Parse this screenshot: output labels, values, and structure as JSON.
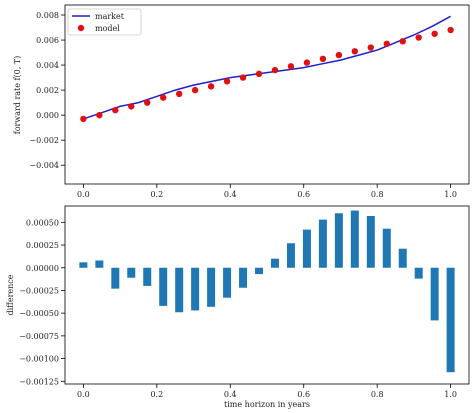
{
  "chart_data": [
    {
      "type": "line",
      "ylabel": "forward rate f(0, T)",
      "xlim": [
        -0.05,
        1.05
      ],
      "ylim": [
        -0.0055,
        0.0088
      ],
      "xticks": [
        "0.0",
        "0.2",
        "0.4",
        "0.6",
        "0.8",
        "1.0"
      ],
      "yticks": [
        "−0.004",
        "−0.002",
        "0.000",
        "0.002",
        "0.004",
        "0.006",
        "0.008"
      ],
      "legend": {
        "position": "top-left",
        "entries": [
          "market",
          "model"
        ]
      },
      "series": [
        {
          "name": "market",
          "style": "line",
          "color": "#1f1fcc",
          "x": [
            0.0,
            0.05,
            0.1,
            0.15,
            0.2,
            0.25,
            0.3,
            0.35,
            0.4,
            0.45,
            0.5,
            0.55,
            0.6,
            0.65,
            0.7,
            0.75,
            0.8,
            0.85,
            0.9,
            0.95,
            1.0
          ],
          "y": [
            -0.0003,
            0.0002,
            0.0007,
            0.001,
            0.0015,
            0.002,
            0.0024,
            0.0027,
            0.003,
            0.0032,
            0.0034,
            0.0036,
            0.0038,
            0.0041,
            0.0044,
            0.0048,
            0.0052,
            0.0058,
            0.0064,
            0.0071,
            0.0079
          ]
        },
        {
          "name": "model",
          "style": "scatter",
          "color": "#e01010",
          "x": [
            0.0,
            0.0435,
            0.087,
            0.1304,
            0.1739,
            0.2174,
            0.2609,
            0.3043,
            0.3478,
            0.3913,
            0.4348,
            0.4783,
            0.5217,
            0.5652,
            0.6087,
            0.6522,
            0.6957,
            0.7391,
            0.7826,
            0.8261,
            0.8696,
            0.913,
            0.9565,
            1.0
          ],
          "y": [
            -0.0003,
            0.0,
            0.0004,
            0.0007,
            0.001,
            0.0014,
            0.0017,
            0.002,
            0.0023,
            0.0027,
            0.003,
            0.0033,
            0.0036,
            0.0039,
            0.0042,
            0.0045,
            0.0048,
            0.0051,
            0.0054,
            0.0057,
            0.0059,
            0.0062,
            0.0065,
            0.0068
          ]
        }
      ]
    },
    {
      "type": "bar",
      "xlabel": "time horizon in years",
      "ylabel": "difference",
      "xlim": [
        -0.05,
        1.05
      ],
      "ylim": [
        -0.00128,
        0.00068
      ],
      "xticks": [
        "0.0",
        "0.2",
        "0.4",
        "0.6",
        "0.8",
        "1.0"
      ],
      "yticks": [
        "0.00050",
        "0.00025",
        "0.00000",
        "−0.00025",
        "−0.00050",
        "−0.00075",
        "−0.00100",
        "−0.00125"
      ],
      "color": "#1f77b4",
      "x": [
        0.0,
        0.0435,
        0.087,
        0.1304,
        0.1739,
        0.2174,
        0.2609,
        0.3043,
        0.3478,
        0.3913,
        0.4348,
        0.4783,
        0.5217,
        0.5652,
        0.6087,
        0.6522,
        0.6957,
        0.7391,
        0.7826,
        0.8261,
        0.8696,
        0.913,
        0.9565,
        1.0
      ],
      "values": [
        6e-05,
        8e-05,
        -0.00023,
        -0.00011,
        -0.0002,
        -0.00042,
        -0.00049,
        -0.00047,
        -0.00043,
        -0.00033,
        -0.00022,
        -7e-05,
        0.0001,
        0.00027,
        0.00042,
        0.00053,
        0.0006,
        0.00063,
        0.00057,
        0.00043,
        0.00021,
        -0.00012,
        -0.00058,
        -0.00115
      ]
    }
  ]
}
